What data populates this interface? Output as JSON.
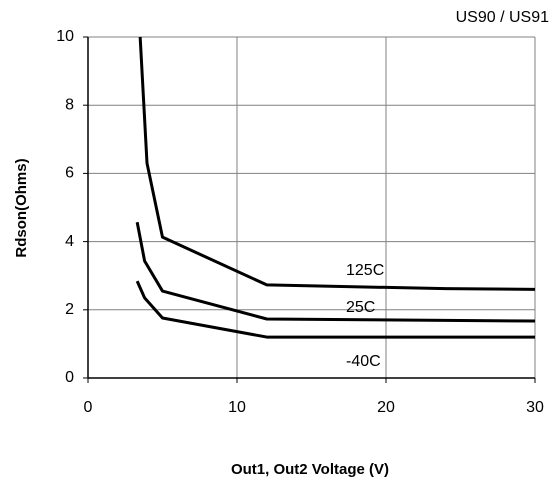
{
  "chart_data": {
    "type": "line",
    "subtitle": "US90 / US91",
    "x_label": "Out1, Out2 Voltage (V)",
    "y_label": "Rdson(Ohms)",
    "xlim": [
      0,
      30
    ],
    "xticks": [
      0,
      10,
      20,
      30
    ],
    "ylim": [
      0,
      10
    ],
    "yticks": [
      0,
      2,
      4,
      6,
      8,
      10
    ],
    "grid": true,
    "series": [
      {
        "name": "125C",
        "color": "#000000",
        "x": [
          3.5,
          3.96,
          5,
          12,
          24,
          30
        ],
        "values": [
          10,
          6.3,
          4.13,
          2.73,
          2.62,
          2.6
        ]
      },
      {
        "name": "25C",
        "color": "#000000",
        "x": [
          3.3,
          3.8,
          5,
          12,
          30
        ],
        "values": [
          4.57,
          3.43,
          2.55,
          1.73,
          1.67
        ]
      },
      {
        "name": "-40C",
        "color": "#000000",
        "x": [
          3.3,
          3.8,
          5,
          12,
          30
        ],
        "values": [
          2.84,
          2.35,
          1.76,
          1.2,
          1.2
        ]
      }
    ]
  }
}
